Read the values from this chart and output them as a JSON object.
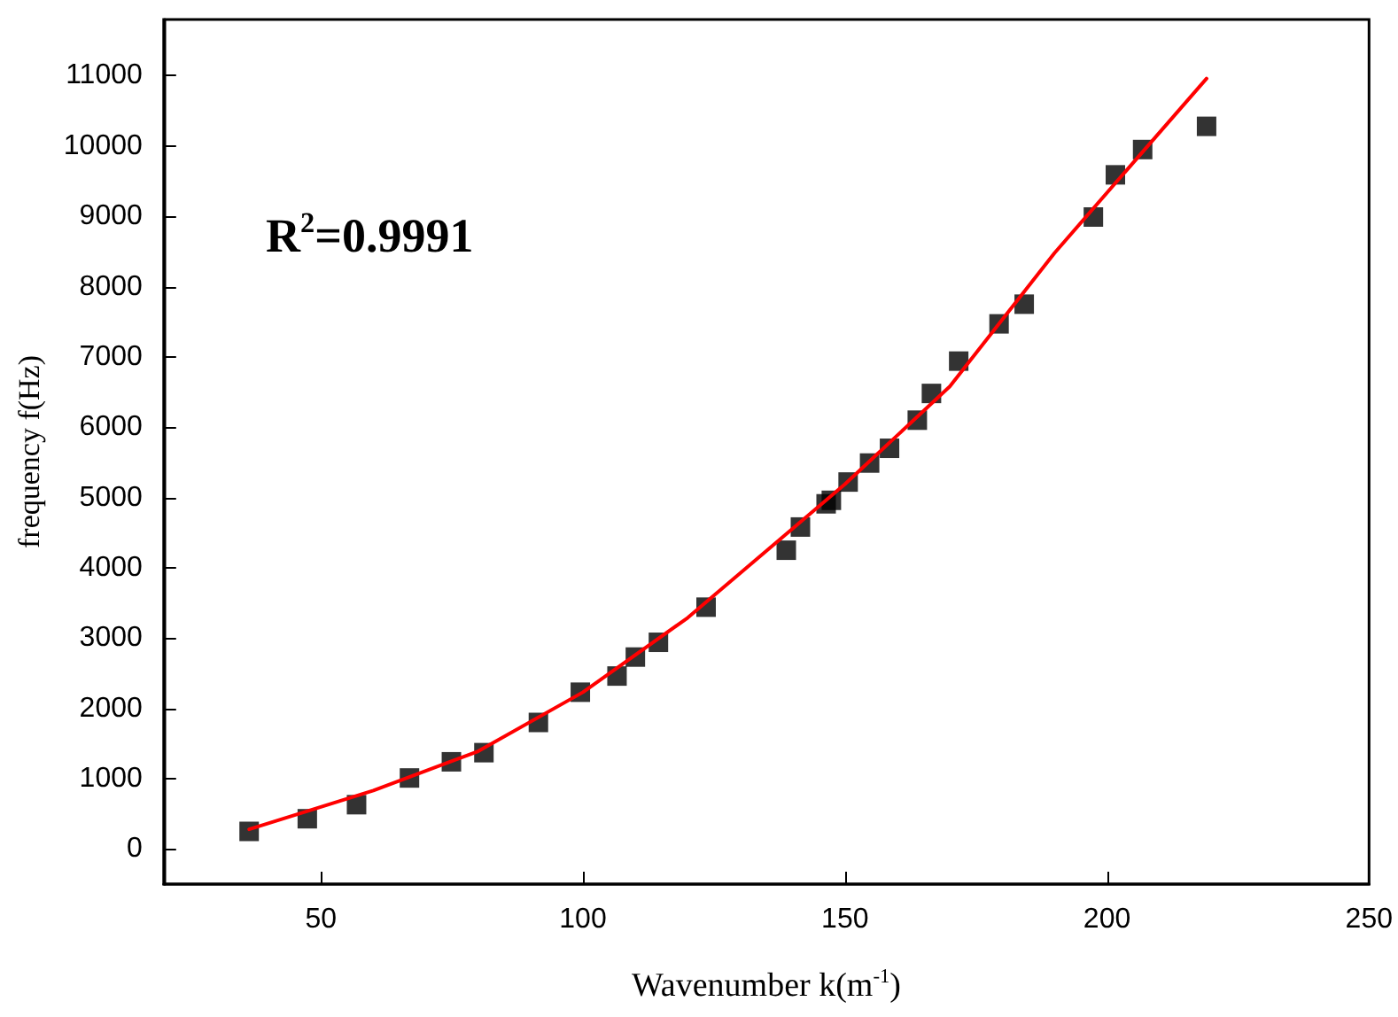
{
  "chart_data": {
    "type": "scatter",
    "xlabel": "Wavenumber k(m$^{-1}$)",
    "ylabel": "frequency f(Hz)",
    "annotations": [
      "R$^{2}$=0.9991"
    ],
    "xlim": [
      20,
      250
    ],
    "xticks": [
      50,
      100,
      150,
      200,
      250
    ],
    "ylim": [
      -500,
      11800
    ],
    "yticks": [
      0,
      1000,
      2000,
      3000,
      4000,
      5000,
      6000,
      7000,
      8000,
      9000,
      10000,
      11000
    ],
    "grid": false,
    "marker": "square",
    "series": [
      {
        "color": "#000000",
        "x": [
          36.3,
          47.4,
          56.8,
          66.9,
          74.9,
          81.1,
          91.5,
          99.5,
          106.5,
          110,
          114.4,
          123.5,
          138.8,
          141.5,
          146.4,
          147.4,
          150.6,
          154.7,
          158.5,
          163.8,
          166.5,
          171.7,
          179.4,
          184.2,
          197.4,
          201.6,
          206.8,
          219
        ],
        "values": [
          250,
          430,
          630,
          1010,
          1240,
          1370,
          1800,
          2230,
          2460,
          2730,
          2940,
          3440,
          4250,
          4580,
          4910,
          4960,
          5220,
          5490,
          5700,
          6100,
          6480,
          6940,
          7470,
          7750,
          8990,
          9590,
          9950,
          10280
        ]
      },
      {
        "type": "line",
        "color": "#ff0000",
        "marker": "none",
        "line_style": "solid",
        "x": [
          36.3,
          60,
          80,
          100,
          120,
          150,
          170,
          190,
          219
        ],
        "values": [
          280,
          830,
          1390,
          2230,
          3290,
          5190,
          6580,
          8480,
          10960
        ]
      }
    ]
  }
}
